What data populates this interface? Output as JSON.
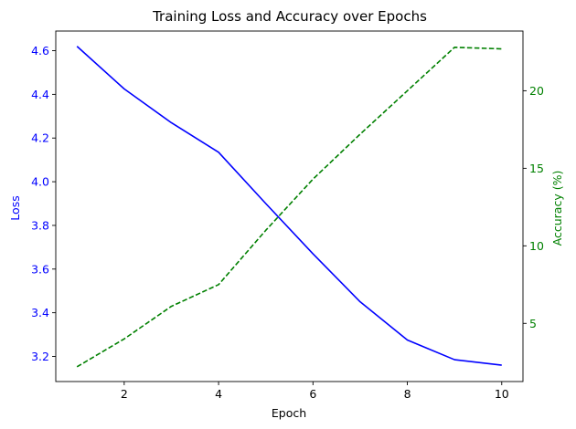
{
  "chart_data": {
    "type": "line",
    "title": "Training Loss and Accuracy over Epochs",
    "xlabel": "Epoch",
    "ylabel_left": "Loss",
    "ylabel_right": "Accuracy (%)",
    "x": [
      1,
      2,
      3,
      4,
      5,
      6,
      7,
      8,
      9,
      10
    ],
    "xlim": [
      0.55,
      10.45
    ],
    "x_ticks": [
      2,
      4,
      6,
      8,
      10
    ],
    "ylim_left": [
      3.085,
      4.69
    ],
    "y_ticks_left": [
      3.2,
      3.4,
      3.6,
      3.8,
      4.0,
      4.2,
      4.4,
      4.6
    ],
    "ylim_right": [
      1.25,
      23.85
    ],
    "y_ticks_right": [
      5,
      10,
      15,
      20
    ],
    "grid": false,
    "series": [
      {
        "name": "Loss",
        "axis": "left",
        "color": "#0000ff",
        "style": "solid",
        "values": [
          4.62,
          4.425,
          4.27,
          4.135,
          3.9,
          3.67,
          3.45,
          3.275,
          3.185,
          3.16
        ]
      },
      {
        "name": "Accuracy",
        "axis": "right",
        "color": "#008000",
        "style": "dashed",
        "values": [
          2.2,
          4.0,
          6.1,
          7.5,
          11.0,
          14.3,
          17.2,
          20.0,
          22.8,
          22.7
        ]
      }
    ]
  }
}
